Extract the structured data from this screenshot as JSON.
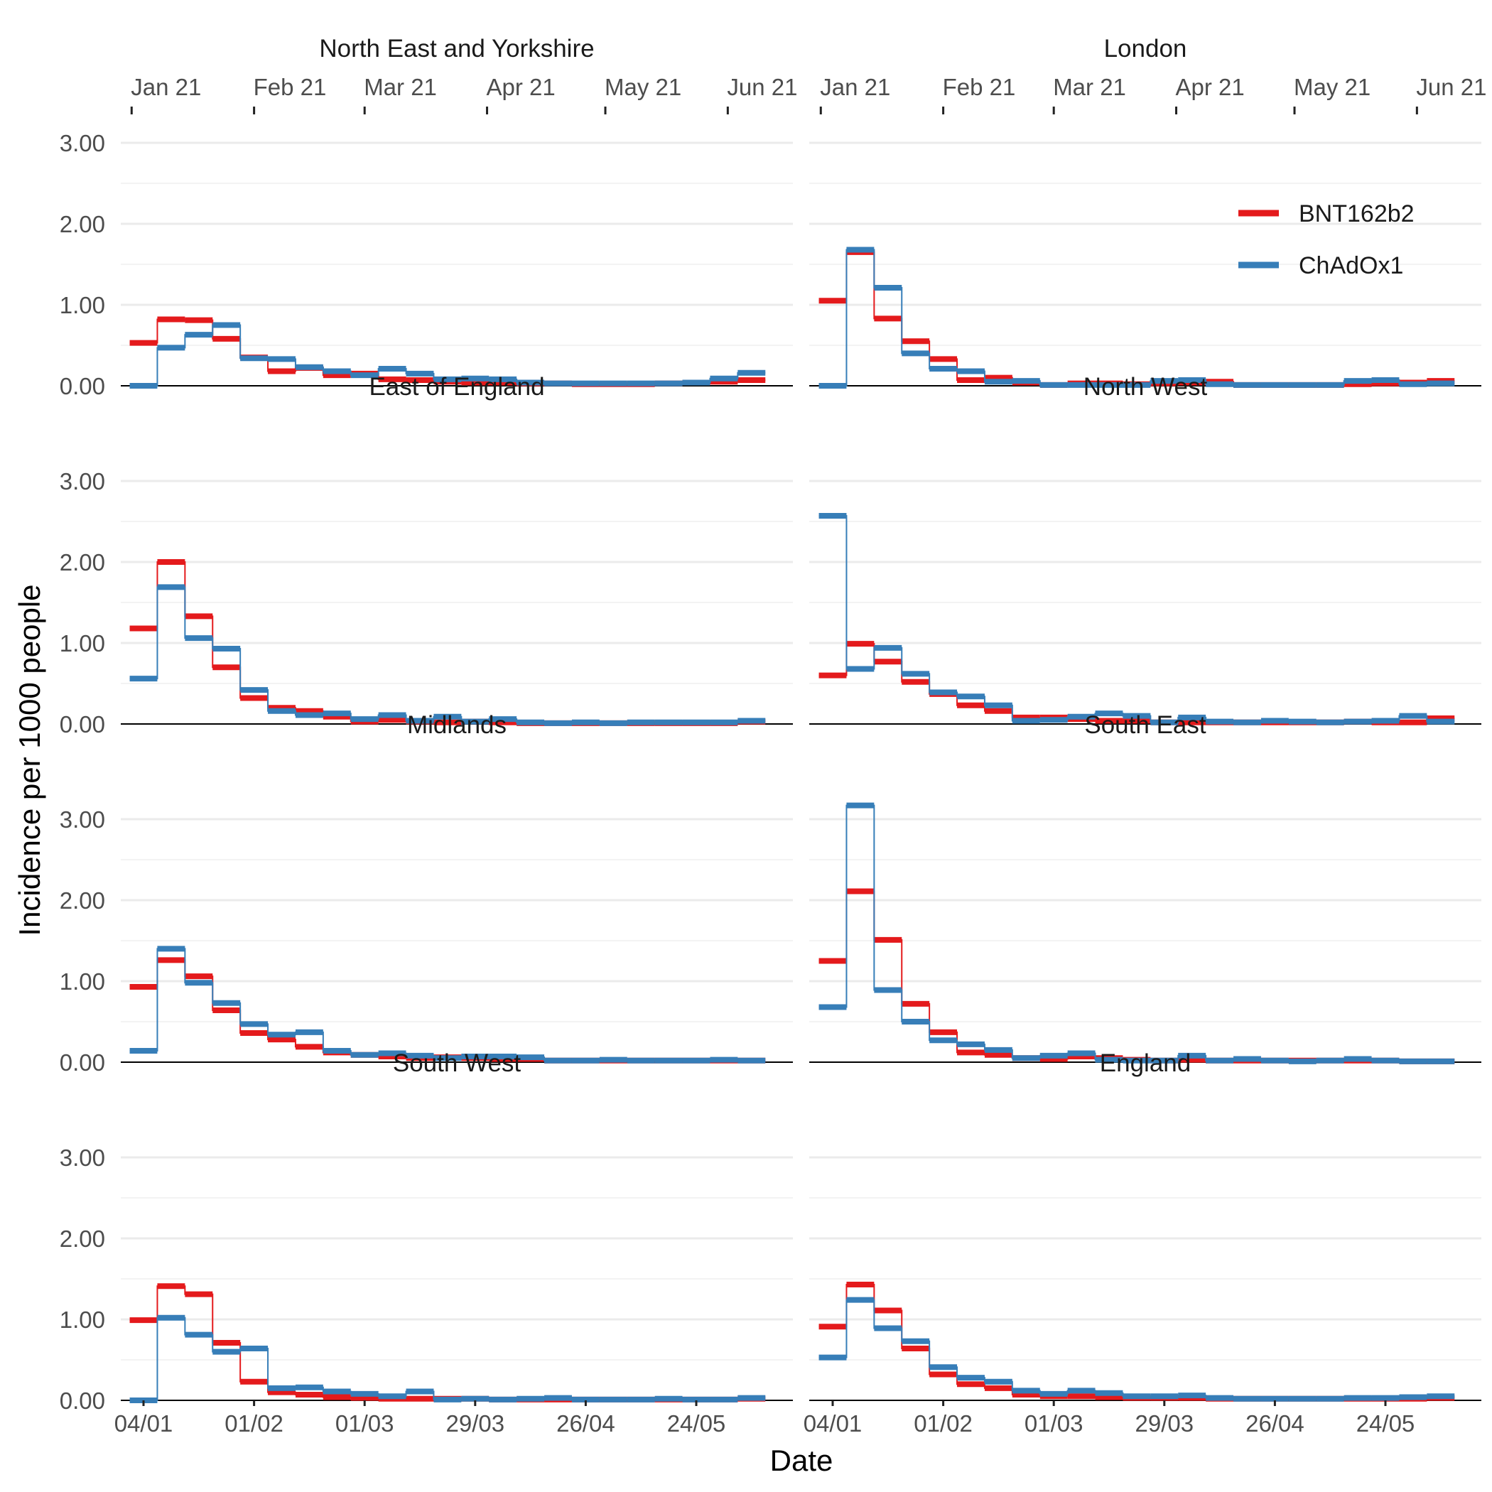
{
  "chart_data": {
    "type": "line",
    "step": true,
    "xlabel": "Date",
    "ylabel": "Incidence per 1000 people",
    "ylim": [
      0,
      3
    ],
    "y_ticks": [
      "0.00",
      "1.00",
      "2.00",
      "3.00"
    ],
    "y_tick_values": [
      0,
      1,
      2,
      3
    ],
    "x_weeks_start": "04/01",
    "x_bottom_ticks": [
      {
        "week": 0,
        "label": "04/01"
      },
      {
        "week": 4,
        "label": "01/02"
      },
      {
        "week": 8,
        "label": "01/03"
      },
      {
        "week": 12,
        "label": "29/03"
      },
      {
        "week": 16,
        "label": "26/04"
      },
      {
        "week": 20,
        "label": "24/05"
      }
    ],
    "x_top_ticks": [
      {
        "week": -0.43,
        "label": "Jan 21"
      },
      {
        "week": 4.0,
        "label": "Feb 21"
      },
      {
        "week": 8.0,
        "label": "Mar 21"
      },
      {
        "week": 12.43,
        "label": "Apr 21"
      },
      {
        "week": 16.71,
        "label": "May 21"
      },
      {
        "week": 21.14,
        "label": "Jun 21"
      }
    ],
    "legend": {
      "position": "top-right",
      "entries": [
        {
          "name": "BNT162b2",
          "color": "#e41a1c"
        },
        {
          "name": "ChAdOx1",
          "color": "#377eb8"
        }
      ]
    },
    "panels": [
      {
        "title": "North East and Yorkshire",
        "series": [
          {
            "name": "BNT162b2",
            "values": [
              0.53,
              0.82,
              0.81,
              0.58,
              0.35,
              0.18,
              0.22,
              0.13,
              0.15,
              0.08,
              0.07,
              0.05,
              0.04,
              0.04,
              0.03,
              0.03,
              0.02,
              0.02,
              0.02,
              0.03,
              0.04,
              0.05,
              0.07
            ]
          },
          {
            "name": "ChAdOx1",
            "values": [
              0.0,
              0.47,
              0.63,
              0.75,
              0.34,
              0.33,
              0.23,
              0.18,
              0.13,
              0.21,
              0.15,
              0.08,
              0.09,
              0.08,
              0.04,
              0.03,
              0.03,
              0.03,
              0.03,
              0.03,
              0.04,
              0.09,
              0.16
            ]
          }
        ]
      },
      {
        "title": "London",
        "series": [
          {
            "name": "BNT162b2",
            "values": [
              1.05,
              1.65,
              0.83,
              0.55,
              0.33,
              0.07,
              0.1,
              0.04,
              0.01,
              0.03,
              0.03,
              0.02,
              0.03,
              0.04,
              0.05,
              0.01,
              0.01,
              0.01,
              0.01,
              0.02,
              0.03,
              0.04,
              0.06
            ]
          },
          {
            "name": "ChAdOx1",
            "values": [
              0.0,
              1.68,
              1.21,
              0.4,
              0.21,
              0.18,
              0.05,
              0.06,
              0.01,
              0.01,
              0.01,
              0.01,
              0.06,
              0.07,
              0.02,
              0.01,
              0.01,
              0.01,
              0.01,
              0.06,
              0.07,
              0.02,
              0.03
            ]
          }
        ]
      },
      {
        "title": "East of England",
        "series": [
          {
            "name": "BNT162b2",
            "values": [
              1.18,
              2.0,
              1.33,
              0.7,
              0.32,
              0.2,
              0.16,
              0.09,
              0.03,
              0.05,
              0.03,
              0.02,
              0.03,
              0.02,
              0.01,
              0.01,
              0.01,
              0.01,
              0.01,
              0.01,
              0.01,
              0.01,
              0.03
            ]
          },
          {
            "name": "ChAdOx1",
            "values": [
              0.56,
              1.69,
              1.06,
              0.93,
              0.42,
              0.16,
              0.11,
              0.13,
              0.06,
              0.11,
              0.04,
              0.09,
              0.03,
              0.06,
              0.02,
              0.01,
              0.02,
              0.01,
              0.02,
              0.02,
              0.02,
              0.02,
              0.04
            ]
          }
        ]
      },
      {
        "title": "North West",
        "series": [
          {
            "name": "BNT162b2",
            "values": [
              0.6,
              0.99,
              0.77,
              0.52,
              0.37,
              0.23,
              0.16,
              0.08,
              0.08,
              0.06,
              0.04,
              0.04,
              0.02,
              0.02,
              0.02,
              0.02,
              0.02,
              0.02,
              0.02,
              0.03,
              0.02,
              0.02,
              0.07
            ]
          },
          {
            "name": "ChAdOx1",
            "values": [
              2.57,
              0.68,
              0.94,
              0.62,
              0.39,
              0.34,
              0.23,
              0.04,
              0.05,
              0.09,
              0.13,
              0.1,
              0.02,
              0.08,
              0.03,
              0.02,
              0.04,
              0.03,
              0.02,
              0.03,
              0.04,
              0.1,
              0.03
            ]
          }
        ]
      },
      {
        "title": "Midlands",
        "series": [
          {
            "name": "BNT162b2",
            "values": [
              0.93,
              1.26,
              1.06,
              0.64,
              0.36,
              0.28,
              0.19,
              0.12,
              0.09,
              0.07,
              0.05,
              0.06,
              0.05,
              0.04,
              0.04,
              0.02,
              0.02,
              0.02,
              0.02,
              0.02,
              0.02,
              0.02,
              0.02
            ]
          },
          {
            "name": "ChAdOx1",
            "values": [
              0.14,
              1.4,
              0.98,
              0.73,
              0.47,
              0.34,
              0.37,
              0.14,
              0.09,
              0.11,
              0.08,
              0.05,
              0.07,
              0.07,
              0.06,
              0.02,
              0.02,
              0.03,
              0.02,
              0.02,
              0.02,
              0.03,
              0.02
            ]
          }
        ]
      },
      {
        "title": "South East",
        "series": [
          {
            "name": "BNT162b2",
            "values": [
              1.25,
              2.11,
              1.51,
              0.72,
              0.37,
              0.12,
              0.09,
              0.05,
              0.04,
              0.07,
              0.05,
              0.03,
              0.02,
              0.03,
              0.02,
              0.02,
              0.02,
              0.02,
              0.02,
              0.02,
              0.02,
              0.01,
              0.01
            ]
          },
          {
            "name": "ChAdOx1",
            "values": [
              0.68,
              3.17,
              0.89,
              0.5,
              0.27,
              0.22,
              0.15,
              0.05,
              0.08,
              0.11,
              0.03,
              0.02,
              0.02,
              0.08,
              0.02,
              0.04,
              0.02,
              0.01,
              0.02,
              0.04,
              0.02,
              0.01,
              0.01
            ]
          }
        ]
      },
      {
        "title": "South West",
        "series": [
          {
            "name": "BNT162b2",
            "values": [
              0.99,
              1.41,
              1.31,
              0.71,
              0.23,
              0.1,
              0.07,
              0.04,
              0.03,
              0.02,
              0.02,
              0.02,
              0.02,
              0.01,
              0.01,
              0.01,
              0.01,
              0.01,
              0.01,
              0.01,
              0.01,
              0.01,
              0.02
            ]
          },
          {
            "name": "ChAdOx1",
            "values": [
              0.0,
              1.02,
              0.81,
              0.6,
              0.64,
              0.15,
              0.16,
              0.11,
              0.08,
              0.05,
              0.11,
              0.01,
              0.02,
              0.01,
              0.02,
              0.03,
              0.01,
              0.01,
              0.01,
              0.02,
              0.01,
              0.01,
              0.03
            ]
          }
        ]
      },
      {
        "title": "England",
        "series": [
          {
            "name": "BNT162b2",
            "values": [
              0.91,
              1.43,
              1.11,
              0.64,
              0.32,
              0.2,
              0.15,
              0.07,
              0.05,
              0.05,
              0.04,
              0.03,
              0.03,
              0.03,
              0.02,
              0.02,
              0.02,
              0.02,
              0.02,
              0.02,
              0.02,
              0.02,
              0.03
            ]
          },
          {
            "name": "ChAdOx1",
            "values": [
              0.53,
              1.24,
              0.89,
              0.73,
              0.41,
              0.28,
              0.23,
              0.12,
              0.08,
              0.12,
              0.09,
              0.05,
              0.05,
              0.06,
              0.03,
              0.02,
              0.02,
              0.02,
              0.02,
              0.03,
              0.03,
              0.04,
              0.05
            ]
          }
        ]
      }
    ]
  }
}
